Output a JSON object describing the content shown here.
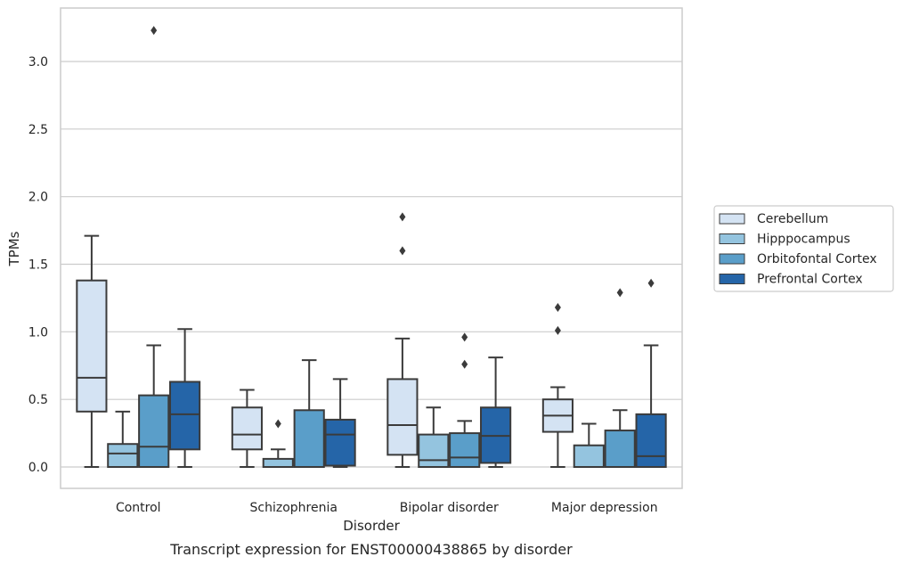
{
  "chart_data": {
    "type": "box",
    "caption": "Transcript expression for ENST00000438865 by disorder",
    "xlabel": "Disorder",
    "ylabel": "TPMs",
    "ylim": [
      -0.16,
      3.39
    ],
    "yticks": [
      0.0,
      0.5,
      1.0,
      1.5,
      2.0,
      2.5,
      3.0
    ],
    "ytick_labels": [
      "0.0",
      "0.5",
      "1.0",
      "1.5",
      "2.0",
      "2.5",
      "3.0"
    ],
    "grid": "horizontal",
    "legend_position": "right",
    "categories": [
      "Control",
      "Schizophrenia",
      "Bipolar disorder",
      "Major depression"
    ],
    "series": [
      {
        "name": "Cerebellum",
        "color": "#d4e3f3",
        "boxes": [
          {
            "whisker_low": 0.0,
            "q1": 0.41,
            "median": 0.66,
            "q3": 1.38,
            "whisker_high": 1.71,
            "outliers": []
          },
          {
            "whisker_low": 0.0,
            "q1": 0.13,
            "median": 0.24,
            "q3": 0.44,
            "whisker_high": 0.57,
            "outliers": []
          },
          {
            "whisker_low": 0.0,
            "q1": 0.09,
            "median": 0.31,
            "q3": 0.65,
            "whisker_high": 0.95,
            "outliers": [
              1.6,
              1.85
            ]
          },
          {
            "whisker_low": 0.0,
            "q1": 0.26,
            "median": 0.38,
            "q3": 0.5,
            "whisker_high": 0.59,
            "outliers": [
              1.01,
              1.18
            ]
          }
        ]
      },
      {
        "name": "Hipppocampus",
        "color": "#94c4df",
        "boxes": [
          {
            "whisker_low": 0.0,
            "q1": 0.0,
            "median": 0.1,
            "q3": 0.17,
            "whisker_high": 0.41,
            "outliers": []
          },
          {
            "whisker_low": 0.0,
            "q1": 0.0,
            "median": 0.0,
            "q3": 0.06,
            "whisker_high": 0.13,
            "outliers": [
              0.32
            ]
          },
          {
            "whisker_low": 0.0,
            "q1": 0.0,
            "median": 0.05,
            "q3": 0.24,
            "whisker_high": 0.44,
            "outliers": []
          },
          {
            "whisker_low": 0.0,
            "q1": 0.0,
            "median": 0.0,
            "q3": 0.16,
            "whisker_high": 0.32,
            "outliers": []
          }
        ]
      },
      {
        "name": "Orbitofontal Cortex",
        "color": "#5a9ec9",
        "boxes": [
          {
            "whisker_low": 0.0,
            "q1": 0.0,
            "median": 0.15,
            "q3": 0.53,
            "whisker_high": 0.9,
            "outliers": [
              3.23
            ]
          },
          {
            "whisker_low": 0.0,
            "q1": 0.0,
            "median": 0.0,
            "q3": 0.42,
            "whisker_high": 0.79,
            "outliers": []
          },
          {
            "whisker_low": 0.0,
            "q1": 0.0,
            "median": 0.07,
            "q3": 0.25,
            "whisker_high": 0.34,
            "outliers": [
              0.76,
              0.96
            ]
          },
          {
            "whisker_low": 0.0,
            "q1": 0.0,
            "median": 0.0,
            "q3": 0.27,
            "whisker_high": 0.42,
            "outliers": [
              1.29
            ]
          }
        ]
      },
      {
        "name": "Prefrontal Cortex",
        "color": "#2565a8",
        "boxes": [
          {
            "whisker_low": 0.0,
            "q1": 0.13,
            "median": 0.39,
            "q3": 0.63,
            "whisker_high": 1.02,
            "outliers": []
          },
          {
            "whisker_low": 0.0,
            "q1": 0.01,
            "median": 0.24,
            "q3": 0.35,
            "whisker_high": 0.65,
            "outliers": []
          },
          {
            "whisker_low": 0.0,
            "q1": 0.03,
            "median": 0.23,
            "q3": 0.44,
            "whisker_high": 0.81,
            "outliers": []
          },
          {
            "whisker_low": 0.0,
            "q1": 0.0,
            "median": 0.08,
            "q3": 0.39,
            "whisker_high": 0.9,
            "outliers": [
              1.36
            ]
          }
        ]
      }
    ]
  }
}
